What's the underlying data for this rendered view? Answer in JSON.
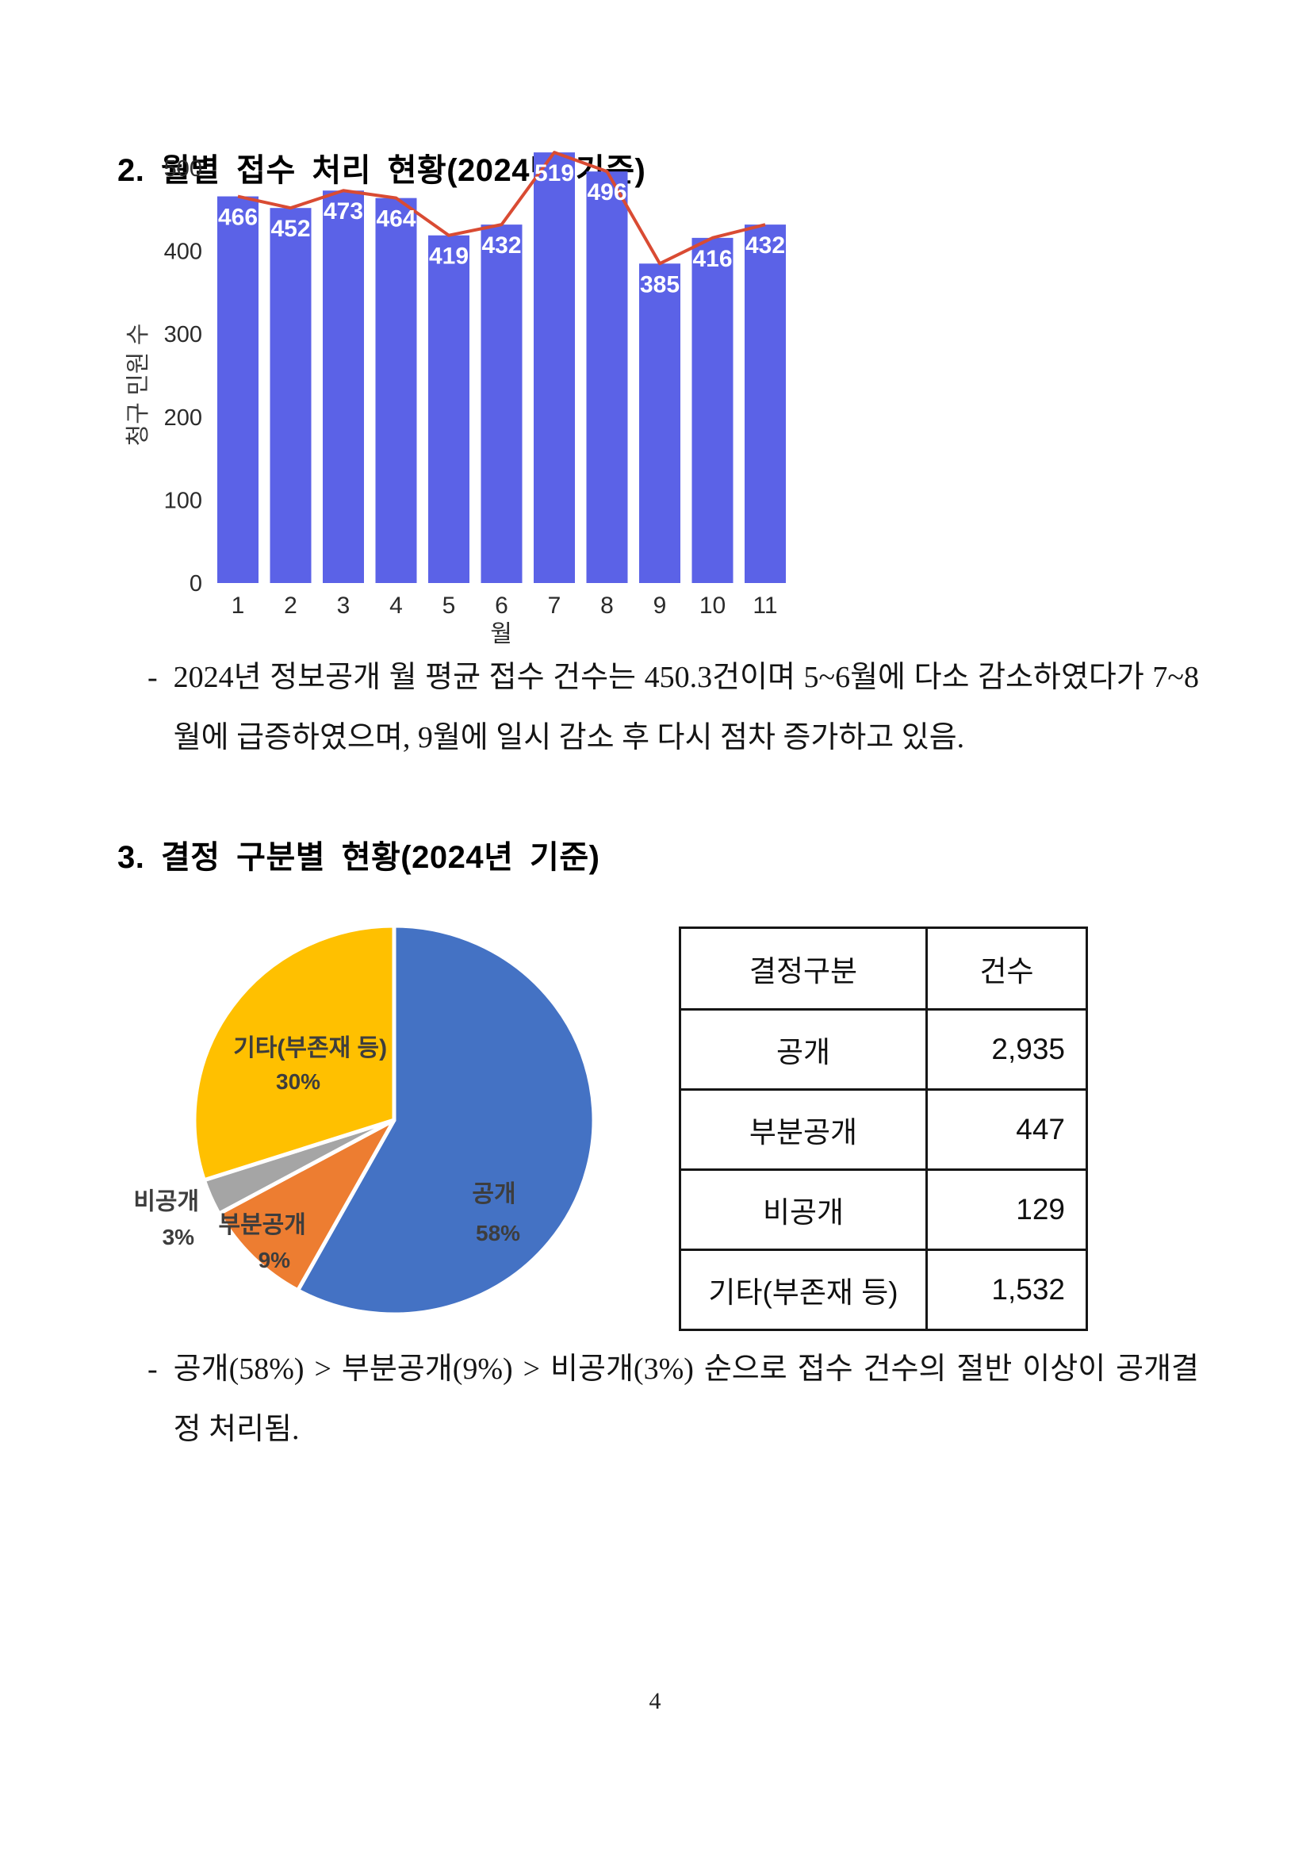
{
  "page": {
    "number": "4"
  },
  "section2": {
    "heading": "2. 월별 접수 처리 현황(2024년 기준)",
    "bullet": "-",
    "paragraph": "2024년 정보공개 월 평균 접수 건수는 450.3건이며 5~6월에 다소 감소하였다가 7~8월에 급증하였으며, 9월에 일시 감소 후 다시 점차 증가하고 있음."
  },
  "section3": {
    "heading": "3. 결정 구분별 현황(2024년 기준)",
    "bullet": "-",
    "paragraph": "공개(58%) > 부분공개(9%) > 비공개(3%) 순으로 접수 건수의 절반 이상이 공개결정 처리됨."
  },
  "chart_data": [
    {
      "type": "bar",
      "title": "",
      "categories": [
        "1",
        "2",
        "3",
        "4",
        "5",
        "6",
        "7",
        "8",
        "9",
        "10",
        "11"
      ],
      "values": [
        466,
        452,
        473,
        464,
        419,
        432,
        519,
        496,
        385,
        416,
        432
      ],
      "overlay_line": {
        "type": "line",
        "values": [
          466,
          452,
          473,
          464,
          419,
          432,
          519,
          496,
          385,
          416,
          432
        ],
        "color": "#d94b33"
      },
      "xlabel": "월",
      "ylabel": "청구 민원 수",
      "ylim": [
        0,
        500
      ],
      "yticks": [
        0,
        100,
        200,
        300,
        400,
        500
      ],
      "bar_color": "#5b62e7",
      "value_label_color": "#ffffff",
      "grid": false,
      "legend": "none"
    },
    {
      "type": "pie",
      "labels": [
        "공개",
        "부분공개",
        "비공개",
        "기타(부존재 등)"
      ],
      "values_pct": [
        58,
        9,
        3,
        30
      ],
      "pct_labels": [
        "58%",
        "9%",
        "3%",
        "30%"
      ],
      "colors": [
        "#4472C4",
        "#ED7D31",
        "#A5A5A5",
        "#FFC000"
      ],
      "label_color": "#3d3d3d",
      "start_angle_deg": 0,
      "direction": "clockwise",
      "legend": "none"
    }
  ],
  "decision_table": {
    "headers": [
      "결정구분",
      "건수"
    ],
    "rows": [
      {
        "category": "공개",
        "count": "2,935"
      },
      {
        "category": "부분공개",
        "count": "447"
      },
      {
        "category": "비공개",
        "count": "129"
      },
      {
        "category": "기타(부존재 등)",
        "count": "1,532"
      }
    ]
  }
}
